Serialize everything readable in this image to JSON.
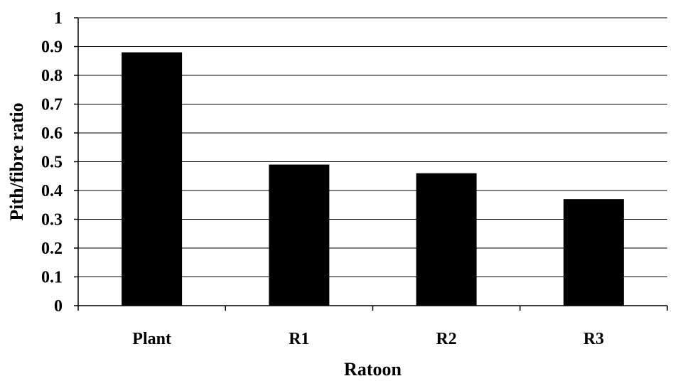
{
  "chart_data": {
    "type": "bar",
    "categories": [
      "Plant",
      "R1",
      "R2",
      "R3"
    ],
    "values": [
      0.88,
      0.49,
      0.46,
      0.37
    ],
    "title": "",
    "xlabel": "Ratoon",
    "ylabel": "Pith/fibre ratio",
    "ylim": [
      0,
      1
    ],
    "yticks": [
      "0",
      "0.1",
      "0.2",
      "0.3",
      "0.4",
      "0.5",
      "0.6",
      "0.7",
      "0.8",
      "0.9",
      "1"
    ],
    "grid": true,
    "legend": "none",
    "bar_color": "#000000"
  }
}
